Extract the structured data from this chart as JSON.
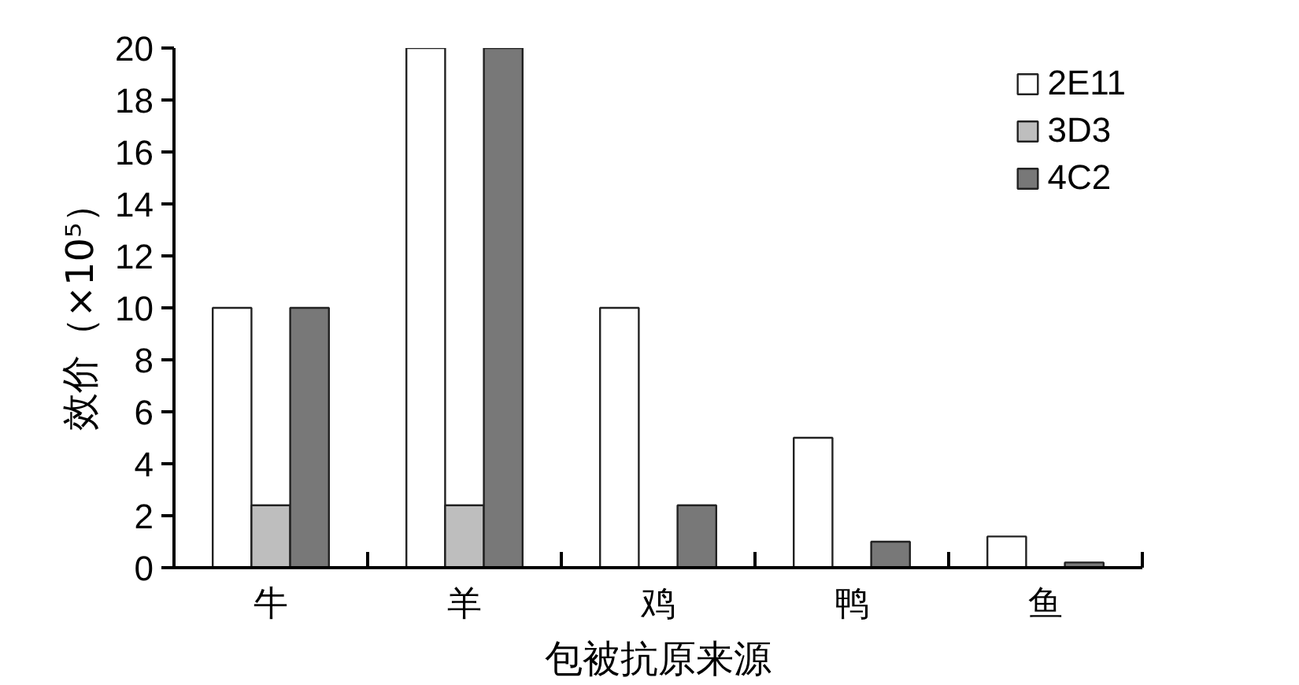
{
  "chart_data": {
    "type": "bar",
    "xlabel": "包被抗原来源",
    "ylabel": "效价（×10⁵）",
    "categories": [
      "牛",
      "羊",
      "鸡",
      "鸭",
      "鱼"
    ],
    "series": [
      {
        "name": "2E11",
        "color": "#ffffff",
        "values": [
          10,
          20,
          10,
          5,
          1.2
        ]
      },
      {
        "name": "3D3",
        "color": "#bebebe",
        "values": [
          2.4,
          2.4,
          null,
          null,
          null
        ]
      },
      {
        "name": "4C2",
        "color": "#787878",
        "values": [
          10,
          20,
          2.4,
          1,
          0.2
        ]
      }
    ],
    "ylim": [
      0,
      20
    ],
    "yticks": [
      0,
      2,
      4,
      6,
      8,
      10,
      12,
      14,
      16,
      18,
      20
    ],
    "grid": false,
    "legend": "top right"
  }
}
